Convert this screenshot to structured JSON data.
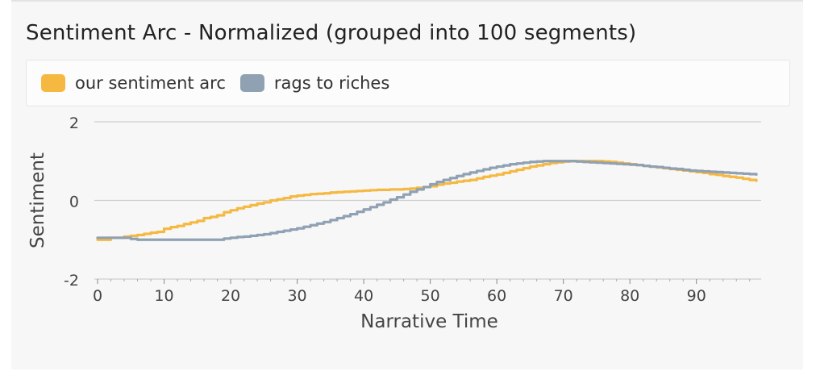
{
  "chart_data": {
    "type": "line",
    "title": "Sentiment Arc - Normalized (grouped into 100 segments)",
    "xlabel": "Narrative Time",
    "ylabel": "Sentiment",
    "xlim": [
      0,
      99
    ],
    "ylim": [
      -2,
      2
    ],
    "xticks": [
      0,
      10,
      20,
      30,
      40,
      50,
      60,
      70,
      80,
      90
    ],
    "yticks": [
      -2,
      0,
      2
    ],
    "grid": "horizontal",
    "legend_position": "top",
    "x": [
      0,
      1,
      2,
      3,
      4,
      5,
      6,
      7,
      8,
      9,
      10,
      11,
      12,
      13,
      14,
      15,
      16,
      17,
      18,
      19,
      20,
      21,
      22,
      23,
      24,
      25,
      26,
      27,
      28,
      29,
      30,
      31,
      32,
      33,
      34,
      35,
      36,
      37,
      38,
      39,
      40,
      41,
      42,
      43,
      44,
      45,
      46,
      47,
      48,
      49,
      50,
      51,
      52,
      53,
      54,
      55,
      56,
      57,
      58,
      59,
      60,
      61,
      62,
      63,
      64,
      65,
      66,
      67,
      68,
      69,
      70,
      71,
      72,
      73,
      74,
      75,
      76,
      77,
      78,
      79,
      80,
      81,
      82,
      83,
      84,
      85,
      86,
      87,
      88,
      89,
      90,
      91,
      92,
      93,
      94,
      95,
      96,
      97,
      98,
      99
    ],
    "series": [
      {
        "name": "our sentiment arc",
        "color": "#f5b942",
        "values": [
          -1.0,
          -1.0,
          -0.95,
          -0.95,
          -0.92,
          -0.9,
          -0.88,
          -0.85,
          -0.82,
          -0.8,
          -0.72,
          -0.68,
          -0.65,
          -0.6,
          -0.56,
          -0.52,
          -0.45,
          -0.42,
          -0.38,
          -0.3,
          -0.25,
          -0.2,
          -0.16,
          -0.12,
          -0.08,
          -0.05,
          0.0,
          0.03,
          0.06,
          0.1,
          0.12,
          0.14,
          0.16,
          0.17,
          0.18,
          0.2,
          0.21,
          0.22,
          0.23,
          0.24,
          0.25,
          0.26,
          0.27,
          0.27,
          0.28,
          0.28,
          0.29,
          0.3,
          0.32,
          0.34,
          0.36,
          0.4,
          0.43,
          0.45,
          0.48,
          0.5,
          0.52,
          0.56,
          0.6,
          0.63,
          0.66,
          0.7,
          0.74,
          0.78,
          0.82,
          0.86,
          0.89,
          0.92,
          0.95,
          0.97,
          0.99,
          1.0,
          1.0,
          1.0,
          1.0,
          1.0,
          0.99,
          0.98,
          0.96,
          0.94,
          0.92,
          0.9,
          0.88,
          0.86,
          0.84,
          0.82,
          0.8,
          0.78,
          0.76,
          0.74,
          0.72,
          0.7,
          0.67,
          0.65,
          0.62,
          0.6,
          0.58,
          0.55,
          0.52,
          0.5
        ]
      },
      {
        "name": "rags to riches",
        "color": "#8fa1b3",
        "values": [
          -0.95,
          -0.95,
          -0.95,
          -0.95,
          -0.95,
          -0.98,
          -1.0,
          -1.0,
          -1.0,
          -1.0,
          -1.0,
          -1.0,
          -1.0,
          -1.0,
          -1.0,
          -1.0,
          -1.0,
          -1.0,
          -1.0,
          -0.97,
          -0.95,
          -0.93,
          -0.92,
          -0.9,
          -0.88,
          -0.86,
          -0.83,
          -0.8,
          -0.77,
          -0.74,
          -0.71,
          -0.67,
          -0.63,
          -0.59,
          -0.55,
          -0.5,
          -0.45,
          -0.4,
          -0.35,
          -0.29,
          -0.23,
          -0.17,
          -0.11,
          -0.05,
          0.02,
          0.08,
          0.15,
          0.22,
          0.28,
          0.34,
          0.41,
          0.47,
          0.52,
          0.57,
          0.62,
          0.67,
          0.71,
          0.75,
          0.79,
          0.83,
          0.86,
          0.89,
          0.92,
          0.94,
          0.96,
          0.98,
          0.99,
          1.0,
          1.0,
          1.0,
          1.0,
          1.0,
          0.99,
          0.98,
          0.97,
          0.96,
          0.95,
          0.94,
          0.93,
          0.92,
          0.91,
          0.9,
          0.88,
          0.86,
          0.85,
          0.83,
          0.81,
          0.8,
          0.78,
          0.76,
          0.75,
          0.74,
          0.73,
          0.72,
          0.71,
          0.7,
          0.69,
          0.68,
          0.67,
          0.66
        ]
      }
    ]
  }
}
